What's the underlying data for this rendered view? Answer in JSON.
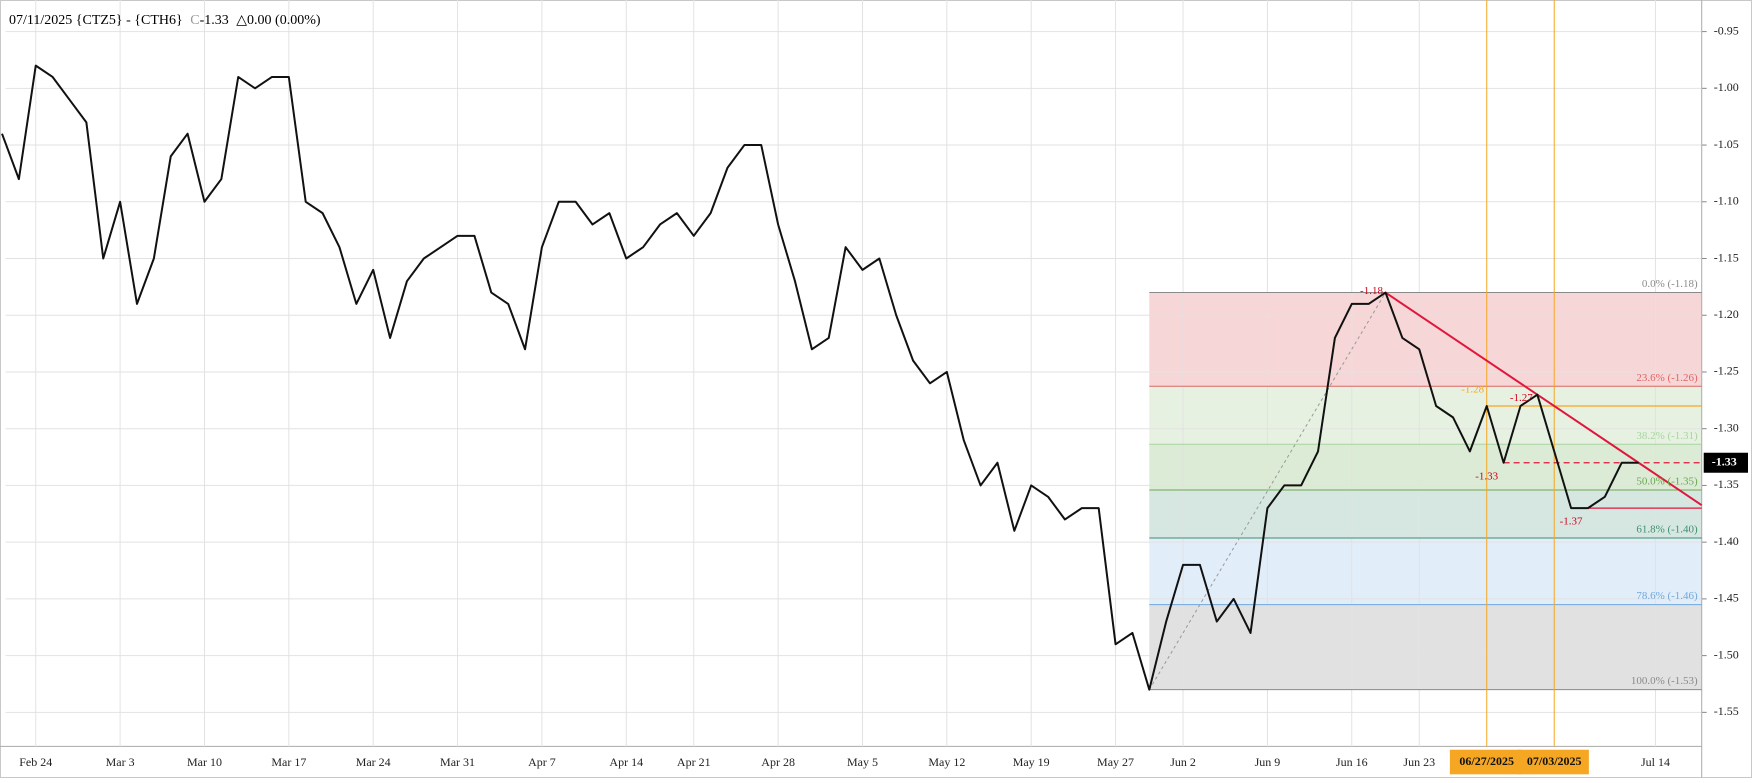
{
  "chart_data": {
    "type": "line",
    "title": "07/11/2025 {CTZ5} - {CTH6}",
    "close_prefix": "C",
    "close": -1.33,
    "change": "△0.00 (0.00%)",
    "color": "#111111",
    "grid": true,
    "ylim": [
      -1.58,
      -0.932
    ],
    "yticks": [
      -0.95,
      {
        "value": -1,
        "label": "-1.00"
      },
      -1.05,
      {
        "value": -1.1,
        "label": "-1.10"
      },
      -1.15,
      {
        "value": -1.2,
        "label": "-1.20"
      },
      -1.25,
      {
        "value": -1.3,
        "label": "-1.30"
      },
      -1.35,
      {
        "value": -1.4,
        "label": "-1.40"
      },
      -1.45,
      {
        "value": -1.5,
        "label": "-1.50"
      },
      -1.55
    ],
    "categories": [
      null,
      null,
      "Feb 24",
      null,
      null,
      null,
      null,
      "Mar 3",
      null,
      null,
      null,
      null,
      "Mar 10",
      null,
      null,
      null,
      null,
      "Mar 17",
      null,
      null,
      null,
      null,
      "Mar 24",
      null,
      null,
      null,
      null,
      "Mar 31",
      null,
      null,
      null,
      null,
      "Apr 7",
      null,
      null,
      null,
      null,
      "Apr 14",
      null,
      null,
      null,
      "Apr 21",
      null,
      null,
      null,
      null,
      "Apr 28",
      null,
      null,
      null,
      null,
      "May 5",
      null,
      null,
      null,
      null,
      "May 12",
      null,
      null,
      null,
      null,
      "May 19",
      null,
      null,
      null,
      null,
      "May 27",
      null,
      null,
      null,
      "Jun 2",
      null,
      null,
      null,
      null,
      "Jun 9",
      null,
      null,
      null,
      null,
      "Jun 16",
      null,
      null,
      null,
      "Jun 23",
      null,
      null,
      null,
      null,
      null,
      null,
      null,
      null,
      null,
      null,
      null,
      null,
      null,
      "Jul 14"
    ],
    "values": [
      -1.04,
      -1.08,
      -0.98,
      -0.99,
      -1.01,
      -1.03,
      -1.15,
      -1.1,
      -1.19,
      -1.15,
      -1.06,
      -1.04,
      -1.1,
      -1.08,
      -0.99,
      -1.0,
      -0.99,
      -0.99,
      -1.1,
      -1.11,
      -1.14,
      -1.19,
      -1.16,
      -1.22,
      -1.17,
      -1.15,
      -1.14,
      -1.13,
      -1.13,
      -1.18,
      -1.19,
      -1.23,
      -1.14,
      -1.1,
      -1.1,
      -1.12,
      -1.11,
      -1.15,
      -1.14,
      -1.12,
      -1.11,
      -1.13,
      -1.11,
      -1.07,
      -1.05,
      -1.05,
      -1.12,
      -1.17,
      -1.23,
      -1.22,
      -1.14,
      -1.16,
      -1.15,
      -1.2,
      -1.24,
      -1.26,
      -1.25,
      -1.31,
      -1.35,
      -1.33,
      -1.39,
      -1.35,
      -1.36,
      -1.38,
      -1.37,
      -1.37,
      -1.49,
      -1.48,
      -1.53,
      -1.47,
      -1.42,
      -1.42,
      -1.47,
      -1.45,
      -1.48,
      -1.37,
      -1.35,
      -1.35,
      -1.32,
      -1.22,
      -1.19,
      -1.19,
      -1.18,
      -1.22,
      -1.23,
      -1.28,
      -1.29,
      -1.32,
      -1.28,
      -1.33,
      -1.28,
      -1.27,
      -1.32,
      -1.37,
      -1.37,
      -1.36,
      -1.33,
      -1.33,
      null
    ],
    "date_markers": [
      {
        "label": "06/27/2025",
        "color": "#f5a623"
      },
      {
        "label": "07/03/2025",
        "color": "#f5a623"
      }
    ],
    "fib_levels": [
      {
        "label": "0.0% (-1.18)",
        "value": -1.18,
        "color": "#8a8a8a",
        "fill": null
      },
      {
        "label": "23.6% (-1.26)",
        "value": -1.2626,
        "color": "#e06666",
        "fill": "#f6d6d6"
      },
      {
        "label": "38.2% (-1.31)",
        "value": -1.3137,
        "color": "#a8d5a0",
        "fill": "#e6f1e1"
      },
      {
        "label": "50.0% (-1.35)",
        "value": -1.354,
        "color": "#6aa84f",
        "fill": "#dcebd5"
      },
      {
        "label": "61.8% (-1.40)",
        "value": -1.3963,
        "color": "#3f8f6f",
        "fill": "#d6e7e1"
      },
      {
        "label": "78.6% (-1.46)",
        "value": -1.4551,
        "color": "#6fa8dc",
        "fill": "#e1edf9"
      },
      {
        "label": "100.0% (-1.53)",
        "value": -1.53,
        "color": "#8a8a8a",
        "fill": "#e1e1e1"
      }
    ],
    "trendline": {
      "color": "#e0173c",
      "values": [
        -1.18,
        -1.27
      ]
    },
    "hlines": [
      {
        "value": -1.28,
        "color": "#f5a623",
        "dashed": false
      },
      {
        "value": -1.33,
        "color": "#e0173c",
        "dashed": true
      },
      {
        "value": -1.37,
        "color": "#e0173c",
        "dashed": false
      }
    ],
    "annotations": [
      {
        "label": "-1.18",
        "value": -1.18,
        "color": "#d0021b"
      },
      {
        "label": "-1.28",
        "value": -1.28,
        "color": "#f5a623"
      },
      {
        "label": "-1.27",
        "value": -1.27,
        "color": "#d0021b"
      },
      {
        "label": "-1.33",
        "value": -1.33,
        "color": "#d0021b"
      },
      {
        "label": "-1.37",
        "value": -1.37,
        "color": "#d0021b"
      }
    ]
  }
}
